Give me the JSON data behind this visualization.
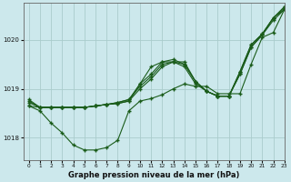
{
  "background_color": "#cce8ec",
  "grid_color": "#aacccc",
  "line_color": "#1a5c1a",
  "title": "Graphe pression niveau de la mer (hPa)",
  "xlim": [
    -0.5,
    23
  ],
  "ylim": [
    1017.55,
    1020.75
  ],
  "yticks": [
    1018,
    1019,
    1020
  ],
  "xticks": [
    0,
    1,
    2,
    3,
    4,
    5,
    6,
    7,
    8,
    9,
    10,
    11,
    12,
    13,
    14,
    15,
    16,
    17,
    18,
    19,
    20,
    21,
    22,
    23
  ],
  "series": [
    {
      "x": [
        0,
        1,
        2,
        3,
        4,
        5,
        6,
        7,
        8,
        9,
        10,
        11,
        12,
        13,
        14,
        15,
        16,
        17,
        18,
        19,
        20,
        21,
        22,
        23
      ],
      "y": [
        1018.75,
        1018.62,
        1018.62,
        1018.62,
        1018.62,
        1018.62,
        1018.65,
        1018.68,
        1018.7,
        1018.75,
        1019.0,
        1019.2,
        1019.45,
        1019.55,
        1019.45,
        1019.1,
        1018.95,
        1018.85,
        1018.85,
        1019.3,
        1019.85,
        1020.1,
        1020.45,
        1020.62
      ]
    },
    {
      "x": [
        0,
        1,
        2,
        3,
        4,
        5,
        6,
        7,
        8,
        9,
        10,
        11,
        12,
        13,
        14,
        15,
        16,
        17,
        18,
        19,
        20,
        21,
        22,
        23
      ],
      "y": [
        1018.65,
        1018.55,
        1018.3,
        1018.1,
        1017.85,
        1017.75,
        1017.75,
        1017.8,
        1017.95,
        1018.55,
        1018.75,
        1018.8,
        1018.88,
        1019.0,
        1019.1,
        1019.05,
        1019.05,
        1018.9,
        1018.9,
        1018.9,
        1019.5,
        1020.05,
        1020.15,
        1020.62
      ]
    },
    {
      "x": [
        0,
        1,
        2,
        3,
        4,
        5,
        6,
        7,
        8,
        9,
        10,
        11,
        12,
        13,
        14,
        15,
        16,
        17,
        18,
        19,
        20,
        21,
        22,
        23
      ],
      "y": [
        1018.65,
        1018.62,
        1018.62,
        1018.62,
        1018.62,
        1018.62,
        1018.65,
        1018.68,
        1018.7,
        1018.75,
        1019.1,
        1019.45,
        1019.55,
        1019.55,
        1019.55,
        1019.15,
        1018.95,
        1018.85,
        1018.85,
        1019.3,
        1019.85,
        1020.1,
        1020.4,
        1020.62
      ]
    },
    {
      "x": [
        0,
        1,
        2,
        3,
        4,
        5,
        6,
        7,
        8,
        9,
        10,
        11,
        12,
        13,
        14,
        15,
        16,
        17,
        18,
        19,
        20,
        21,
        22,
        23
      ],
      "y": [
        1018.72,
        1018.62,
        1018.62,
        1018.62,
        1018.62,
        1018.62,
        1018.65,
        1018.68,
        1018.72,
        1018.78,
        1019.05,
        1019.25,
        1019.5,
        1019.55,
        1019.5,
        1019.15,
        1018.95,
        1018.85,
        1018.85,
        1019.35,
        1019.9,
        1020.12,
        1020.45,
        1020.65
      ]
    },
    {
      "x": [
        0,
        1,
        2,
        3,
        4,
        5,
        6,
        7,
        8,
        9,
        10,
        11,
        12,
        13,
        14,
        15,
        16,
        17,
        18,
        19,
        20,
        21,
        22,
        23
      ],
      "y": [
        1018.78,
        1018.62,
        1018.62,
        1018.62,
        1018.62,
        1018.62,
        1018.65,
        1018.68,
        1018.72,
        1018.78,
        1019.1,
        1019.3,
        1019.55,
        1019.6,
        1019.5,
        1019.15,
        1018.95,
        1018.85,
        1018.85,
        1019.35,
        1019.9,
        1020.12,
        1020.45,
        1020.68
      ]
    }
  ]
}
